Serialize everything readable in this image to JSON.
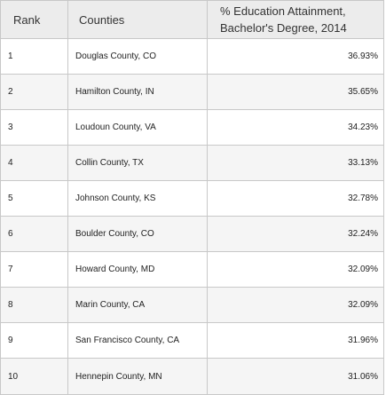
{
  "table": {
    "headers": {
      "rank": "Rank",
      "counties": "Counties",
      "pct_line1": "% Education Attainment,",
      "pct_line2": "Bachelor's Degree, 2014"
    },
    "rows": [
      {
        "rank": "1",
        "county": "Douglas County, CO",
        "pct": "36.93%"
      },
      {
        "rank": "2",
        "county": "Hamilton County, IN",
        "pct": "35.65%"
      },
      {
        "rank": "3",
        "county": "Loudoun County, VA",
        "pct": "34.23%"
      },
      {
        "rank": "4",
        "county": "Collin County, TX",
        "pct": "33.13%"
      },
      {
        "rank": "5",
        "county": "Johnson County, KS",
        "pct": "32.78%"
      },
      {
        "rank": "6",
        "county": "Boulder County, CO",
        "pct": "32.24%"
      },
      {
        "rank": "7",
        "county": "Howard County, MD",
        "pct": "32.09%"
      },
      {
        "rank": "8",
        "county": "Marin County, CA",
        "pct": "32.09%"
      },
      {
        "rank": "9",
        "county": "San Francisco County, CA",
        "pct": "31.96%"
      },
      {
        "rank": "10",
        "county": "Hennepin County, MN",
        "pct": "31.06%"
      }
    ]
  },
  "colors": {
    "header_bg": "#ececec",
    "alt_row_bg": "#f5f5f5",
    "border": "#c8c8c8"
  }
}
